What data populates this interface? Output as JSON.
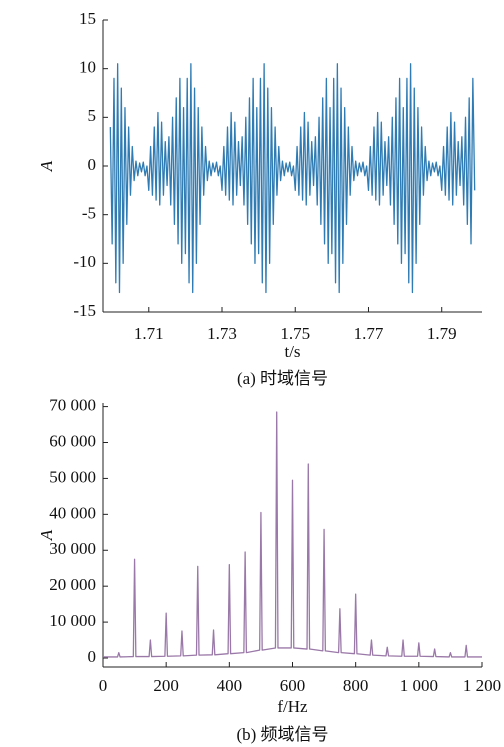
{
  "chart_data": [
    {
      "type": "line",
      "title": "(a)  时域信号",
      "xlabel": "t/s",
      "ylabel": "A",
      "color": "#2f7bb3",
      "xlim": [
        1.6975,
        1.801
      ],
      "ylim": [
        -15,
        15
      ],
      "xticks": [
        1.71,
        1.73,
        1.75,
        1.77,
        1.79
      ],
      "yticks": [
        -15,
        -10,
        -5,
        0,
        5,
        10,
        15
      ],
      "x": [
        1.6995,
        1.7,
        1.7005,
        1.701,
        1.7015,
        1.702,
        1.7025,
        1.703,
        1.7035,
        1.704,
        1.7045,
        1.705,
        1.7055,
        1.706,
        1.7065,
        1.707,
        1.7075,
        1.708,
        1.7085,
        1.709,
        1.7095,
        1.71,
        1.7105,
        1.711,
        1.7115,
        1.712,
        1.7125,
        1.713,
        1.7135,
        1.714,
        1.7145,
        1.715,
        1.7155,
        1.716,
        1.7165,
        1.717,
        1.7175,
        1.718,
        1.7185,
        1.719,
        1.7195,
        1.72,
        1.7205,
        1.721,
        1.7215,
        1.722,
        1.7225,
        1.723,
        1.7235,
        1.724,
        1.7245,
        1.725,
        1.7255,
        1.726,
        1.7265,
        1.727,
        1.7275,
        1.728,
        1.7285,
        1.729,
        1.7295,
        1.73,
        1.7305,
        1.731,
        1.7315,
        1.732,
        1.7325,
        1.733,
        1.7335,
        1.734,
        1.7345,
        1.735,
        1.7355,
        1.736,
        1.7365,
        1.737,
        1.7375,
        1.738,
        1.7385,
        1.739,
        1.7395,
        1.74,
        1.7405,
        1.741,
        1.7415,
        1.742,
        1.7425,
        1.743,
        1.7435,
        1.744,
        1.7445,
        1.745,
        1.7455,
        1.746,
        1.7465,
        1.747,
        1.7475,
        1.748,
        1.7485,
        1.749,
        1.7495,
        1.75,
        1.7505,
        1.751,
        1.7515,
        1.752,
        1.7525,
        1.753,
        1.7535,
        1.754,
        1.7545,
        1.755,
        1.7555,
        1.756,
        1.7565,
        1.757,
        1.7575,
        1.758,
        1.7585,
        1.759,
        1.7595,
        1.76,
        1.7605,
        1.761,
        1.7615,
        1.762,
        1.7625,
        1.763,
        1.7635,
        1.764,
        1.7645,
        1.765,
        1.7655,
        1.766,
        1.7665,
        1.767,
        1.7675,
        1.768,
        1.7685,
        1.769,
        1.7695,
        1.77,
        1.7705,
        1.771,
        1.7715,
        1.772,
        1.7725,
        1.773,
        1.7735,
        1.774,
        1.7745,
        1.775,
        1.7755,
        1.776,
        1.7765,
        1.777,
        1.7775,
        1.778,
        1.7785,
        1.779,
        1.7795,
        1.78,
        1.7805,
        1.781,
        1.7815,
        1.782,
        1.7825,
        1.783,
        1.7835,
        1.784,
        1.7845,
        1.785,
        1.7855,
        1.786,
        1.7865,
        1.787,
        1.7875,
        1.788,
        1.7885,
        1.789,
        1.7895,
        1.79,
        1.7905,
        1.791,
        1.7915,
        1.792,
        1.7925,
        1.793,
        1.7935,
        1.794,
        1.7945,
        1.795,
        1.7955,
        1.796,
        1.7965,
        1.797,
        1.7975,
        1.798,
        1.7985,
        1.799
      ],
      "values": [
        4,
        -8,
        9,
        -12,
        10.5,
        -13,
        8,
        -10,
        6,
        -6,
        4,
        -3,
        2,
        -1.5,
        0.5,
        -1,
        0.3,
        -0.6,
        0.4,
        -1,
        0,
        -2.5,
        2,
        -3,
        4,
        -3.5,
        5.5,
        -4,
        4.5,
        -3,
        2.5,
        -2,
        3,
        -4,
        5,
        -6,
        7,
        -8,
        9,
        -10,
        6,
        -9,
        9,
        -12,
        10.5,
        -13,
        8,
        -10,
        6,
        -6,
        4,
        -3,
        2,
        -1.5,
        0.5,
        -1,
        0.3,
        -0.6,
        0.4,
        -1,
        0,
        -2.5,
        2,
        -3,
        4,
        -3.5,
        5.5,
        -4,
        4.5,
        -3,
        2.5,
        -2,
        3,
        -4,
        5,
        -6,
        7,
        -8,
        9,
        -10,
        6,
        -9,
        9,
        -12,
        10.5,
        -13,
        8,
        -10,
        6,
        -6,
        4,
        -3,
        2,
        -1.5,
        0.5,
        -1,
        0.3,
        -0.6,
        0.4,
        -1,
        0,
        -2.5,
        2,
        -3,
        4,
        -3.5,
        5.5,
        -4,
        4.5,
        -3,
        2.5,
        -2,
        3,
        -4,
        5,
        -6,
        7,
        -8,
        9,
        -10,
        6,
        -9,
        9,
        -12,
        10.5,
        -13,
        8,
        -10,
        6,
        -6,
        4,
        -3,
        2,
        -1.5,
        0.5,
        -1,
        0.3,
        -0.6,
        0.4,
        -1,
        0,
        -2.5,
        2,
        -3,
        4,
        -3.5,
        5.5,
        -4,
        4.5,
        -3,
        2.5,
        -2,
        3,
        -4,
        5,
        -6,
        7,
        -8,
        9,
        -10,
        6,
        -9,
        9,
        -12,
        10.5,
        -13,
        8,
        -10,
        6,
        -6,
        4,
        -3,
        2,
        -1.5,
        0.5,
        -1,
        0.3,
        -0.6,
        0.4,
        -1,
        0,
        -2.5,
        2,
        -3,
        4,
        -3.5,
        5.5,
        -4,
        4.5,
        -3,
        2.5,
        -2,
        3,
        -4,
        5,
        -6,
        7,
        -8,
        9,
        -2.5
      ]
    },
    {
      "type": "line",
      "title": "(b)  频域信号",
      "xlabel": "f/Hz",
      "ylabel": "A",
      "color": "#9a78a8",
      "xlim": [
        0,
        1200
      ],
      "ylim": [
        -2500,
        71000
      ],
      "xticks": [
        0,
        200,
        400,
        600,
        800,
        {
          "value": 1000,
          "label": "1 000"
        },
        {
          "value": 1200,
          "label": "1 200"
        }
      ],
      "yticks": [
        0,
        {
          "value": 10000,
          "label": "10 000"
        },
        {
          "value": 20000,
          "label": "20 000"
        },
        {
          "value": 30000,
          "label": "30 000"
        },
        {
          "value": 40000,
          "label": "40 000"
        },
        {
          "value": 50000,
          "label": "50 000"
        },
        {
          "value": 60000,
          "label": "60 000"
        },
        {
          "value": 70000,
          "label": "70 000"
        }
      ],
      "x": [
        0,
        46,
        50,
        54,
        96,
        100,
        104,
        146,
        150,
        154,
        196,
        200,
        204,
        246,
        250,
        254,
        296,
        300,
        304,
        346,
        350,
        354,
        396,
        400,
        404,
        446,
        450,
        454,
        496,
        500,
        504,
        546,
        550,
        554,
        596,
        600,
        604,
        646,
        650,
        654,
        696,
        700,
        704,
        746,
        750,
        754,
        796,
        800,
        804,
        846,
        850,
        854,
        896,
        900,
        904,
        946,
        950,
        954,
        996,
        1000,
        1004,
        1046,
        1050,
        1054,
        1096,
        1100,
        1104,
        1146,
        1150,
        1154,
        1200
      ],
      "values": [
        300,
        300,
        1500,
        300,
        400,
        27500,
        400,
        400,
        5000,
        400,
        500,
        12500,
        500,
        600,
        7500,
        600,
        800,
        25500,
        800,
        900,
        7800,
        900,
        1200,
        26000,
        1200,
        1500,
        29500,
        1500,
        2200,
        40500,
        2200,
        2800,
        68500,
        2800,
        2800,
        49500,
        2800,
        2500,
        54000,
        2500,
        2000,
        35800,
        2000,
        1500,
        13700,
        1500,
        1200,
        17800,
        1200,
        800,
        5000,
        800,
        600,
        3000,
        600,
        500,
        5000,
        500,
        500,
        4200,
        500,
        400,
        2500,
        400,
        300,
        1500,
        300,
        300,
        3500,
        300,
        300
      ]
    }
  ]
}
